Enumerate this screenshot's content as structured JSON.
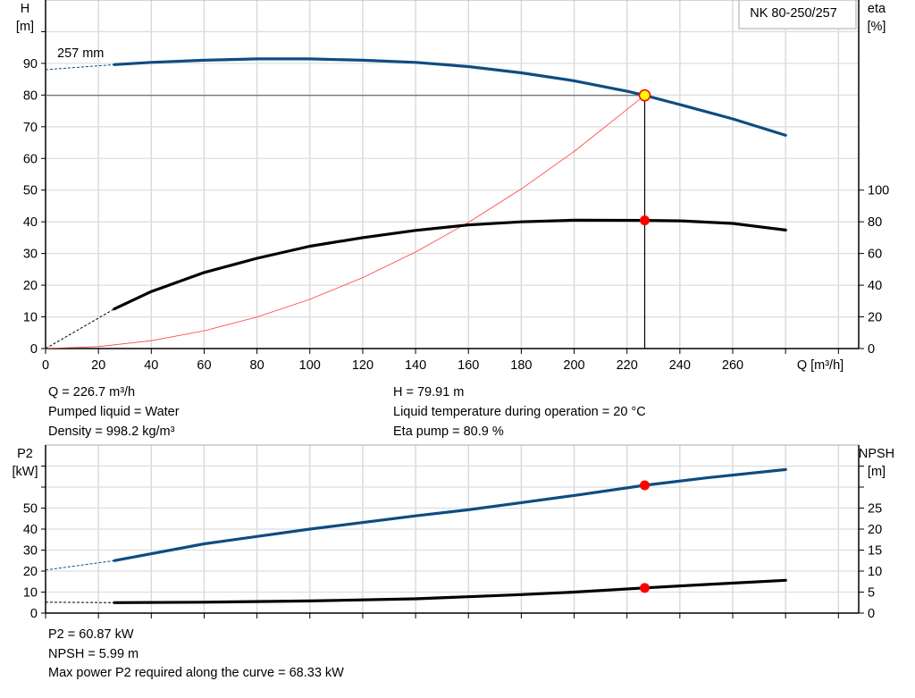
{
  "chart_data": [
    {
      "type": "line",
      "title": "NK 80-250/257",
      "xlabel": "Q [m³/h]",
      "ylabel": "H\n[m]",
      "y2label": "eta\n[%]",
      "xlim": [
        0,
        300
      ],
      "ylim": [
        0,
        110
      ],
      "y2lim": [
        0,
        220
      ],
      "xticks": [
        0,
        20,
        40,
        60,
        80,
        100,
        120,
        140,
        160,
        180,
        200,
        220,
        240,
        260
      ],
      "yticks": [
        0,
        10,
        20,
        30,
        40,
        50,
        60,
        70,
        80,
        90
      ],
      "y2ticks": [
        0,
        20,
        40,
        60,
        80,
        100
      ],
      "grid": true,
      "impeller_label": "257 mm",
      "series": [
        {
          "name": "H",
          "axis": "left",
          "color": "#0f4c81",
          "extrapolated": {
            "x": [
              0,
              26
            ],
            "y": [
              88,
              89.6
            ]
          },
          "x": [
            26,
            40,
            60,
            80,
            100,
            120,
            140,
            160,
            180,
            200,
            220,
            226.7,
            240,
            260,
            280
          ],
          "y": [
            89.6,
            90.3,
            91,
            91.4,
            91.4,
            91,
            90.3,
            89,
            87,
            84.5,
            81.2,
            79.91,
            77,
            72.5,
            67.3
          ]
        },
        {
          "name": "eta",
          "axis": "right",
          "color": "#000000",
          "extrapolated": {
            "x": [
              0,
              26
            ],
            "y": [
              0,
              25
            ]
          },
          "x": [
            26,
            40,
            60,
            80,
            100,
            120,
            140,
            160,
            180,
            200,
            226.7,
            240,
            260,
            280
          ],
          "y": [
            25,
            36,
            48,
            57,
            64.6,
            70,
            74.6,
            78,
            80,
            81,
            80.9,
            80.6,
            79,
            74.8
          ]
        },
        {
          "name": "system curve",
          "axis": "left",
          "color": "#ff4040",
          "x": [
            0,
            20,
            40,
            60,
            80,
            100,
            120,
            140,
            160,
            180,
            200,
            226.7
          ],
          "y": [
            0,
            0.62,
            2.49,
            5.6,
            9.95,
            15.55,
            22.39,
            30.47,
            39.8,
            50.37,
            62.19,
            79.91
          ]
        }
      ],
      "operating_point": {
        "Q": 226.7,
        "H": 79.91,
        "eta": 80.9
      }
    },
    {
      "type": "line",
      "ylabel": "P2\n[kW]",
      "y2label": "NPSH\n[m]",
      "xlim": [
        0,
        300
      ],
      "ylim": [
        0,
        80
      ],
      "y2lim": [
        0,
        40
      ],
      "yticks": [
        0,
        10,
        20,
        30,
        40,
        50
      ],
      "yticks_unlabeled": [
        60,
        70
      ],
      "y2ticks": [
        0,
        5,
        10,
        15,
        20,
        25
      ],
      "y2ticks_unlabeled": [
        30,
        35
      ],
      "grid": true,
      "series": [
        {
          "name": "P2",
          "axis": "left",
          "color": "#0f4c81",
          "extrapolated": {
            "x": [
              0,
              26
            ],
            "y": [
              20.5,
              25
            ]
          },
          "x": [
            26,
            60,
            100,
            140,
            160,
            180,
            200,
            226.7,
            250,
            280
          ],
          "y": [
            25,
            33,
            40,
            46.3,
            49.2,
            52.6,
            56,
            60.87,
            64.4,
            68.33
          ]
        },
        {
          "name": "NPSH",
          "axis": "right",
          "color": "#000000",
          "extrapolated": {
            "x": [
              0,
              26
            ],
            "y": [
              2.6,
              2.5
            ]
          },
          "x": [
            26,
            60,
            100,
            140,
            180,
            200,
            226.7,
            250,
            280
          ],
          "y": [
            2.5,
            2.6,
            2.9,
            3.4,
            4.4,
            5.0,
            5.99,
            6.8,
            7.8
          ]
        }
      ],
      "operating_point": {
        "Q": 226.7,
        "P2": 60.87,
        "NPSH": 5.99
      }
    }
  ],
  "info_top": {
    "q": "Q = 226.7 m³/h",
    "liquid": "Pumped liquid = Water",
    "density": "Density = 998.2 kg/m³",
    "h": "H = 79.91 m",
    "temp": "Liquid temperature during operation = 20 °C",
    "eta": "Eta pump = 80.9 %"
  },
  "info_bottom": {
    "p2": "P2 = 60.87 kW",
    "npsh": "NPSH = 5.99 m",
    "max_power": "Max power P2 required along the curve = 68.33 kW"
  }
}
